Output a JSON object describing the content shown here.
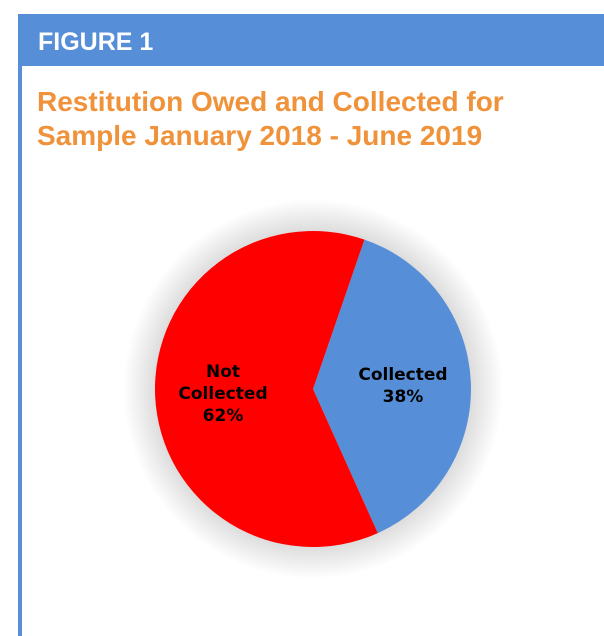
{
  "figure_label": "FIGURE 1",
  "title_lines": [
    "Restitution Owed and Collected for",
    "Sample January 2018 - June 2019"
  ],
  "colors": {
    "header": "#568ed7",
    "title": "#f0923a",
    "collected": "#568ed7",
    "not_collected": "#ff0000"
  },
  "chart_data": {
    "type": "pie",
    "title": "Restitution Owed and Collected for Sample January 2018 - June 2019",
    "start_angle_deg": 19,
    "slices": [
      {
        "name": "Collected",
        "label_lines": [
          "Collected",
          "38%"
        ],
        "percent": 38,
        "color": "#568ed7"
      },
      {
        "name": "Not Collected",
        "label_lines": [
          "Not",
          "Collected",
          "62%"
        ],
        "percent": 62,
        "color": "#ff0000"
      }
    ]
  }
}
